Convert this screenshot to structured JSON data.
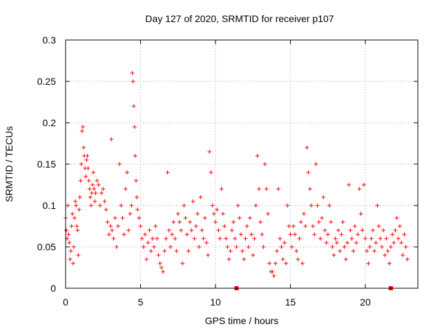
{
  "chart_data": {
    "type": "scatter",
    "title": "Day 127 of 2020, SRMTID for receiver p107",
    "xlabel": "GPS time / hours",
    "ylabel": "SRMTID / TECUs",
    "xlim": [
      0,
      23.5
    ],
    "ylim": [
      0,
      0.3
    ],
    "x_ticks": [
      0,
      5,
      10,
      15,
      20
    ],
    "x_tick_labels": [
      "0",
      "5",
      "10",
      "15",
      "20"
    ],
    "y_ticks": [
      0,
      0.05,
      0.1,
      0.15,
      0.2,
      0.25,
      0.3
    ],
    "y_tick_labels": [
      "0",
      "0.05",
      "0.1",
      "0.15",
      "0.2",
      "0.25",
      "0.3"
    ],
    "grid": true,
    "marker": "+",
    "series": [
      {
        "name": "SRMTID",
        "color": "#ff0000",
        "points": [
          [
            0.0,
            0.085
          ],
          [
            0.05,
            0.07
          ],
          [
            0.1,
            0.06
          ],
          [
            0.15,
            0.1
          ],
          [
            0.2,
            0.065
          ],
          [
            0.25,
            0.055
          ],
          [
            0.3,
            0.035
          ],
          [
            0.35,
            0.045
          ],
          [
            0.4,
            0.075
          ],
          [
            0.45,
            0.09
          ],
          [
            0.5,
            0.03
          ],
          [
            0.55,
            0.05
          ],
          [
            0.6,
            0.085
          ],
          [
            0.65,
            0.105
          ],
          [
            0.7,
            0.1
          ],
          [
            0.75,
            0.075
          ],
          [
            0.8,
            0.07
          ],
          [
            0.85,
            0.04
          ],
          [
            0.9,
            0.095
          ],
          [
            0.95,
            0.11
          ],
          [
            1.0,
            0.13
          ],
          [
            1.05,
            0.15
          ],
          [
            1.1,
            0.19
          ],
          [
            1.15,
            0.195
          ],
          [
            1.2,
            0.17
          ],
          [
            1.25,
            0.16
          ],
          [
            1.3,
            0.145
          ],
          [
            1.35,
            0.135
          ],
          [
            1.4,
            0.155
          ],
          [
            1.45,
            0.16
          ],
          [
            1.5,
            0.145
          ],
          [
            1.55,
            0.13
          ],
          [
            1.6,
            0.12
          ],
          [
            1.65,
            0.11
          ],
          [
            1.7,
            0.1
          ],
          [
            1.75,
            0.115
          ],
          [
            1.8,
            0.125
          ],
          [
            1.85,
            0.14
          ],
          [
            1.9,
            0.12
          ],
          [
            1.95,
            0.105
          ],
          [
            2.0,
            0.115
          ],
          [
            2.1,
            0.13
          ],
          [
            2.2,
            0.125
          ],
          [
            2.3,
            0.1
          ],
          [
            2.4,
            0.115
          ],
          [
            2.5,
            0.12
          ],
          [
            2.6,
            0.105
          ],
          [
            2.7,
            0.095
          ],
          [
            2.8,
            0.08
          ],
          [
            2.9,
            0.065
          ],
          [
            3.0,
            0.075
          ],
          [
            3.05,
            0.18
          ],
          [
            3.1,
            0.07
          ],
          [
            3.2,
            0.06
          ],
          [
            3.3,
            0.085
          ],
          [
            3.4,
            0.05
          ],
          [
            3.5,
            0.075
          ],
          [
            3.6,
            0.15
          ],
          [
            3.7,
            0.1
          ],
          [
            3.8,
            0.085
          ],
          [
            3.9,
            0.065
          ],
          [
            4.0,
            0.12
          ],
          [
            4.1,
            0.14
          ],
          [
            4.2,
            0.07
          ],
          [
            4.3,
            0.09
          ],
          [
            4.4,
            0.1
          ],
          [
            4.45,
            0.26
          ],
          [
            4.5,
            0.25
          ],
          [
            4.55,
            0.22
          ],
          [
            4.6,
            0.195
          ],
          [
            4.65,
            0.16
          ],
          [
            4.7,
            0.13
          ],
          [
            4.75,
            0.11
          ],
          [
            4.8,
            0.095
          ],
          [
            4.9,
            0.085
          ],
          [
            5.0,
            0.075
          ],
          [
            5.1,
            0.06
          ],
          [
            5.2,
            0.05
          ],
          [
            5.3,
            0.065
          ],
          [
            5.4,
            0.035
          ],
          [
            5.5,
            0.055
          ],
          [
            5.6,
            0.07
          ],
          [
            5.7,
            0.045
          ],
          [
            5.8,
            0.06
          ],
          [
            5.9,
            0.05
          ],
          [
            6.0,
            0.075
          ],
          [
            6.1,
            0.06
          ],
          [
            6.2,
            0.04
          ],
          [
            6.3,
            0.03
          ],
          [
            6.4,
            0.025
          ],
          [
            6.5,
            0.02
          ],
          [
            6.6,
            0.045
          ],
          [
            6.7,
            0.06
          ],
          [
            6.8,
            0.14
          ],
          [
            6.9,
            0.07
          ],
          [
            7.0,
            0.05
          ],
          [
            7.1,
            0.065
          ],
          [
            7.2,
            0.08
          ],
          [
            7.3,
            0.06
          ],
          [
            7.4,
            0.045
          ],
          [
            7.5,
            0.09
          ],
          [
            7.6,
            0.08
          ],
          [
            7.7,
            0.07
          ],
          [
            7.8,
            0.03
          ],
          [
            7.9,
            0.1
          ],
          [
            8.0,
            0.085
          ],
          [
            8.1,
            0.065
          ],
          [
            8.2,
            0.045
          ],
          [
            8.3,
            0.08
          ],
          [
            8.4,
            0.07
          ],
          [
            8.5,
            0.105
          ],
          [
            8.6,
            0.06
          ],
          [
            8.7,
            0.075
          ],
          [
            8.8,
            0.09
          ],
          [
            8.9,
            0.05
          ],
          [
            9.0,
            0.11
          ],
          [
            9.1,
            0.07
          ],
          [
            9.2,
            0.06
          ],
          [
            9.3,
            0.085
          ],
          [
            9.4,
            0.055
          ],
          [
            9.5,
            0.04
          ],
          [
            9.6,
            0.165
          ],
          [
            9.7,
            0.14
          ],
          [
            9.8,
            0.1
          ],
          [
            9.9,
            0.09
          ],
          [
            10.0,
            0.08
          ],
          [
            10.1,
            0.095
          ],
          [
            10.2,
            0.07
          ],
          [
            10.3,
            0.06
          ],
          [
            10.4,
            0.12
          ],
          [
            10.5,
            0.09
          ],
          [
            10.6,
            0.075
          ],
          [
            10.7,
            0.06
          ],
          [
            10.8,
            0.05
          ],
          [
            10.9,
            0.035
          ],
          [
            11.0,
            0.045
          ],
          [
            11.1,
            0.07
          ],
          [
            11.2,
            0.08
          ],
          [
            11.3,
            0.06
          ],
          [
            11.4,
            0.05
          ],
          [
            11.5,
            0.1
          ],
          [
            11.6,
            0.085
          ],
          [
            11.7,
            0.065
          ],
          [
            11.8,
            0.045
          ],
          [
            11.9,
            0.035
          ],
          [
            12.0,
            0.06
          ],
          [
            12.1,
            0.075
          ],
          [
            12.2,
            0.05
          ],
          [
            12.3,
            0.085
          ],
          [
            12.4,
            0.065
          ],
          [
            12.5,
            0.04
          ],
          [
            12.6,
            0.06
          ],
          [
            12.7,
            0.1
          ],
          [
            12.8,
            0.16
          ],
          [
            12.9,
            0.12
          ],
          [
            13.0,
            0.08
          ],
          [
            13.1,
            0.065
          ],
          [
            13.2,
            0.05
          ],
          [
            13.3,
            0.15
          ],
          [
            13.4,
            0.12
          ],
          [
            13.5,
            0.09
          ],
          [
            13.6,
            0.03
          ],
          [
            13.7,
            0.02
          ],
          [
            13.8,
            0.02
          ],
          [
            13.9,
            0.015
          ],
          [
            14.0,
            0.03
          ],
          [
            14.1,
            0.045
          ],
          [
            14.2,
            0.12
          ],
          [
            14.3,
            0.06
          ],
          [
            14.4,
            0.05
          ],
          [
            14.5,
            0.035
          ],
          [
            14.6,
            0.055
          ],
          [
            14.7,
            0.03
          ],
          [
            14.8,
            0.1
          ],
          [
            14.9,
            0.075
          ],
          [
            15.0,
            0.065
          ],
          [
            15.1,
            0.05
          ],
          [
            15.2,
            0.075
          ],
          [
            15.3,
            0.065
          ],
          [
            15.4,
            0.045
          ],
          [
            15.5,
            0.035
          ],
          [
            15.6,
            0.06
          ],
          [
            15.7,
            0.08
          ],
          [
            15.8,
            0.03
          ],
          [
            15.9,
            0.09
          ],
          [
            16.0,
            0.075
          ],
          [
            16.1,
            0.17
          ],
          [
            16.2,
            0.14
          ],
          [
            16.3,
            0.12
          ],
          [
            16.4,
            0.1
          ],
          [
            16.5,
            0.075
          ],
          [
            16.6,
            0.065
          ],
          [
            16.7,
            0.15
          ],
          [
            16.8,
            0.1
          ],
          [
            16.9,
            0.08
          ],
          [
            17.0,
            0.06
          ],
          [
            17.1,
            0.085
          ],
          [
            17.2,
            0.11
          ],
          [
            17.3,
            0.07
          ],
          [
            17.4,
            0.055
          ],
          [
            17.5,
            0.065
          ],
          [
            17.6,
            0.1
          ],
          [
            17.7,
            0.08
          ],
          [
            17.8,
            0.05
          ],
          [
            17.9,
            0.04
          ],
          [
            18.0,
            0.06
          ],
          [
            18.1,
            0.055
          ],
          [
            18.2,
            0.07
          ],
          [
            18.3,
            0.045
          ],
          [
            18.4,
            0.065
          ],
          [
            18.5,
            0.08
          ],
          [
            18.6,
            0.05
          ],
          [
            18.7,
            0.035
          ],
          [
            18.8,
            0.055
          ],
          [
            18.9,
            0.125
          ],
          [
            19.0,
            0.07
          ],
          [
            19.1,
            0.06
          ],
          [
            19.2,
            0.045
          ],
          [
            19.3,
            0.075
          ],
          [
            19.4,
            0.055
          ],
          [
            19.5,
            0.065
          ],
          [
            19.6,
            0.12
          ],
          [
            19.7,
            0.09
          ],
          [
            19.8,
            0.07
          ],
          [
            19.9,
            0.125
          ],
          [
            20.0,
            0.06
          ],
          [
            20.1,
            0.045
          ],
          [
            20.2,
            0.03
          ],
          [
            20.3,
            0.05
          ],
          [
            20.4,
            0.06
          ],
          [
            20.5,
            0.07
          ],
          [
            20.6,
            0.045
          ],
          [
            20.7,
            0.055
          ],
          [
            20.8,
            0.1
          ],
          [
            20.9,
            0.075
          ],
          [
            21.0,
            0.06
          ],
          [
            21.1,
            0.05
          ],
          [
            21.2,
            0.07
          ],
          [
            21.3,
            0.04
          ],
          [
            21.4,
            0.06
          ],
          [
            21.5,
            0.045
          ],
          [
            21.6,
            0.03
          ],
          [
            21.7,
            0.05
          ],
          [
            21.8,
            0.065
          ],
          [
            21.9,
            0.055
          ],
          [
            22.0,
            0.07
          ],
          [
            22.1,
            0.085
          ],
          [
            22.2,
            0.06
          ],
          [
            22.3,
            0.075
          ],
          [
            22.4,
            0.055
          ],
          [
            22.5,
            0.04
          ],
          [
            22.6,
            0.065
          ],
          [
            22.7,
            0.05
          ],
          [
            22.8,
            0.035
          ]
        ]
      }
    ],
    "axis_markers": [
      {
        "x": 11.4,
        "y": 0,
        "color": "#ff0000"
      },
      {
        "x": 21.7,
        "y": 0,
        "color": "#ff0000"
      }
    ]
  }
}
